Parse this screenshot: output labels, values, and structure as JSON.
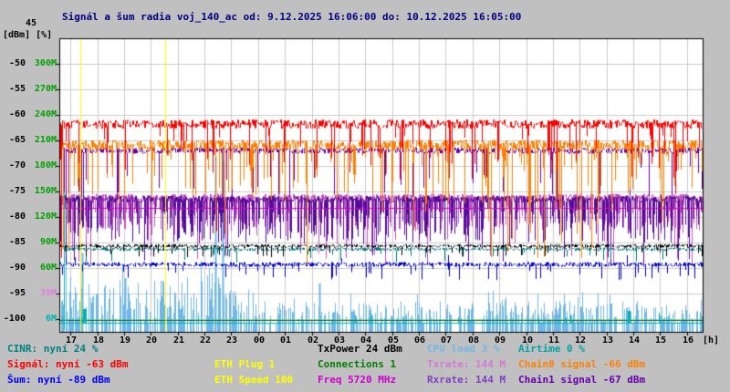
{
  "title": "Signál a šum radia voj_140_ac od: 9.12.2025 16:06:00 do: 10.12.2025 16:05:00",
  "colors": {
    "background": "#c0c0c0",
    "plot_background": "#ffffff",
    "grid": "#cccccc",
    "title_text": "#000080",
    "axis_text": "#000000",
    "rate_axis_text": "#00a000",
    "event_line": "#ffff00"
  },
  "axes": {
    "unit_label": "[dBm] [%]",
    "top_tick": "45",
    "y_dbm": [
      "-50",
      "-55",
      "-60",
      "-65",
      "-70",
      "-75",
      "-80",
      "-85",
      "-90",
      "-95",
      "-100"
    ],
    "y_rate": [
      "300M",
      "270M",
      "240M",
      "210M",
      "180M",
      "150M",
      "120M",
      "90M",
      "60M"
    ],
    "y_rate_extra": [
      {
        "label": "39M",
        "color": "#e080e0"
      },
      {
        "label": "6M",
        "color": "#00b3b3"
      }
    ],
    "x_hours": [
      "17",
      "18",
      "19",
      "20",
      "21",
      "22",
      "23",
      "00",
      "01",
      "02",
      "03",
      "04",
      "05",
      "06",
      "07",
      "08",
      "09",
      "10",
      "11",
      "12",
      "13",
      "14",
      "15",
      "16"
    ],
    "x_unit": "[h]"
  },
  "legend": {
    "cinr": {
      "text": "CINR: nyní 24 %",
      "color": "#008080"
    },
    "signal": {
      "text": "Signál: nyní -63 dBm",
      "color": "#ff0000"
    },
    "sum": {
      "text": "Šum: nyní -89 dBm",
      "color": "#0000ff"
    },
    "ethplug": {
      "text": "ETH Plug 1",
      "color": "#ffff00"
    },
    "ethspeed": {
      "text": "ETH Speed 100",
      "color": "#ffff00"
    },
    "txpower": {
      "text": "TxPower 24 dBm",
      "color": "#000000"
    },
    "conn": {
      "text": "Connections 1",
      "color": "#008000"
    },
    "freq": {
      "text": "Freq 5720 MHz",
      "color": "#cc00cc"
    },
    "cpu": {
      "text": "CPU load 3 %",
      "color": "#6fb7e8"
    },
    "txrate": {
      "text": "Txrate: 144 M",
      "color": "#d678d6"
    },
    "rxrate": {
      "text": "Rxrate: 144 M",
      "color": "#8040c0"
    },
    "airtime": {
      "text": "Airtime 0 %",
      "color": "#00a3a3"
    },
    "chain0": {
      "text": "Chain0 signal -66 dBm",
      "color": "#ff8000"
    },
    "chain1": {
      "text": "Chain1 signal -67 dBm",
      "color": "#6600aa"
    }
  },
  "chart_data": {
    "type": "line",
    "title": "Signál a šum radia voj_140_ac",
    "time_start": "9.12.2025 16:06:00",
    "time_end": "10.12.2025 16:05:00",
    "x_axis": {
      "unit": "h",
      "hours": [
        "17",
        "18",
        "19",
        "20",
        "21",
        "22",
        "23",
        "00",
        "01",
        "02",
        "03",
        "04",
        "05",
        "06",
        "07",
        "08",
        "09",
        "10",
        "11",
        "12",
        "13",
        "14",
        "15",
        "16"
      ]
    },
    "y_axis_left": {
      "unit": "dBm",
      "min": -100,
      "max": -45,
      "tick_step": 5
    },
    "y_axis_right": {
      "unit": "Mbit/s",
      "min": 0,
      "max": 300,
      "tick_step": 30
    },
    "grid": true,
    "legend_position": "bottom",
    "series": [
      {
        "name": "CPU load",
        "current": "3 %",
        "color": "#6fb7e8",
        "type": "spikes-up",
        "busy_zone": [
          0,
          6.6
        ],
        "small": [
          -101,
          -96.5
        ],
        "busy_small": [
          -101,
          -92.5
        ],
        "big_prob": 0.06,
        "big": [
          -96,
          -88.5
        ],
        "quiet_big_prob": 0.02,
        "quiet_big": [
          -96.5,
          -94
        ],
        "events": [
          {
            "t": 5.82,
            "v": -68.2
          },
          {
            "t": 6.08,
            "v": -69.0
          },
          {
            "t": 0.85,
            "v": -87
          },
          {
            "t": 2.45,
            "v": -92
          },
          {
            "t": 9.7,
            "v": -93
          }
        ]
      },
      {
        "name": "Connections",
        "current": "1",
        "color": "#007700",
        "axis": "dbm",
        "type": "flat",
        "baseline": -100.15
      },
      {
        "name": "Airtime",
        "current": "0 %",
        "color": "#00b3b3",
        "type": "flat-bumpy",
        "base": -100.7,
        "bump_prob": 0.015,
        "bump": [
          -99.8,
          -98.8
        ],
        "events": [
          {
            "t": 0.9,
            "v": -98.0,
            "w": 4
          },
          {
            "t": 21.2,
            "v": -98.4,
            "w": 3
          }
        ]
      },
      {
        "name": "Txrate",
        "current": "144 M",
        "color": "#c353c3",
        "axis": "rate",
        "type": "noisy",
        "baseline": 143,
        "jitter": 4,
        "spike_prob": 0.55,
        "spike_min": 103,
        "spike_max": 138,
        "deep_prob": 0.05,
        "deep_min": 62,
        "deep_max": 102
      },
      {
        "name": "Rxrate",
        "current": "144 M",
        "color": "#550d99",
        "axis": "rate",
        "type": "noisy",
        "baseline": 141,
        "jitter": 4,
        "spike_prob": 0.5,
        "spike_min": 90,
        "spike_max": 130,
        "deep_prob": 0.03,
        "deep_min": 60,
        "deep_max": 90
      },
      {
        "name": "Freq",
        "current": "5720 MHz",
        "color": "#cc00cc",
        "axis": "dbm",
        "type": "flat",
        "baseline": -78.2
      },
      {
        "name": "CINR",
        "current": "24 %",
        "color": "#007878",
        "axis": "dbm",
        "type": "noisy",
        "baseline": -86.3,
        "jitter": 0.35,
        "spike_prob": 0.05,
        "spike_min": -87,
        "spike_max": -89
      },
      {
        "name": "TxPower",
        "current": "24 dBm",
        "color": "#000000",
        "axis": "dbm",
        "type": "noisy",
        "baseline": -85.7,
        "jitter": 0.35,
        "spike_prob": 0.05,
        "spike_min": -86.5,
        "spike_max": -88
      },
      {
        "name": "Šum",
        "current": "-89 dBm",
        "color": "#0000cc",
        "axis": "dbm",
        "type": "noisy",
        "baseline": -89.3,
        "jitter": 0.45,
        "spike_prob": 0.08,
        "spike_min": -90,
        "spike_max": -92.5,
        "deep_prob": 0.01,
        "deep_min": -87.2,
        "deep_max": -88.5
      },
      {
        "name": "Chain1 signal",
        "current": "-67 dBm",
        "color": "#6600aa",
        "axis": "dbm",
        "type": "noisy",
        "baseline": -67.0,
        "jitter": 0.6,
        "spike_prob": 0.08,
        "spike_min": -70,
        "spike_max": -78
      },
      {
        "name": "Chain0 signal",
        "current": "-66 dBm",
        "color": "#ff8000",
        "axis": "dbm",
        "type": "noisy",
        "baseline": -65.9,
        "jitter": 1.0,
        "spike_prob": 0.16,
        "spike_min": -68,
        "spike_max": -78,
        "deep_prob": 0.015,
        "deep_min": -78,
        "deep_max": -91,
        "deep_zone": [
          15.6,
          20.2
        ]
      },
      {
        "name": "Signál",
        "current": "-63 dBm",
        "color": "#ff0000",
        "axis": "dbm",
        "type": "noisy",
        "baseline": -61.8,
        "jitter": 0.9,
        "spike_prob": 0.12,
        "spike_min": -64,
        "spike_max": -70,
        "deep_prob": 0.015,
        "deep_min": -70,
        "deep_max": -76
      },
      {
        "name": "ETH Plug",
        "current": "1",
        "color": "#ffff00",
        "type": "events",
        "t_hours": [
          0.78,
          3.95
        ]
      },
      {
        "name": "ETH Speed",
        "current": "100",
        "color": "#ffff00",
        "type": "none"
      }
    ],
    "startup_spikes": [
      {
        "t": 0.07,
        "color": "#ff0000",
        "from": -62,
        "to": -88
      },
      {
        "t": 0.12,
        "color": "#ff8000",
        "from": -66,
        "to": -86
      },
      {
        "t": 0.17,
        "color": "#00b3b3",
        "from": -102,
        "to": -75
      },
      {
        "t": 0.24,
        "color": "#6fb7e8",
        "from": -102,
        "to": -89
      }
    ]
  }
}
